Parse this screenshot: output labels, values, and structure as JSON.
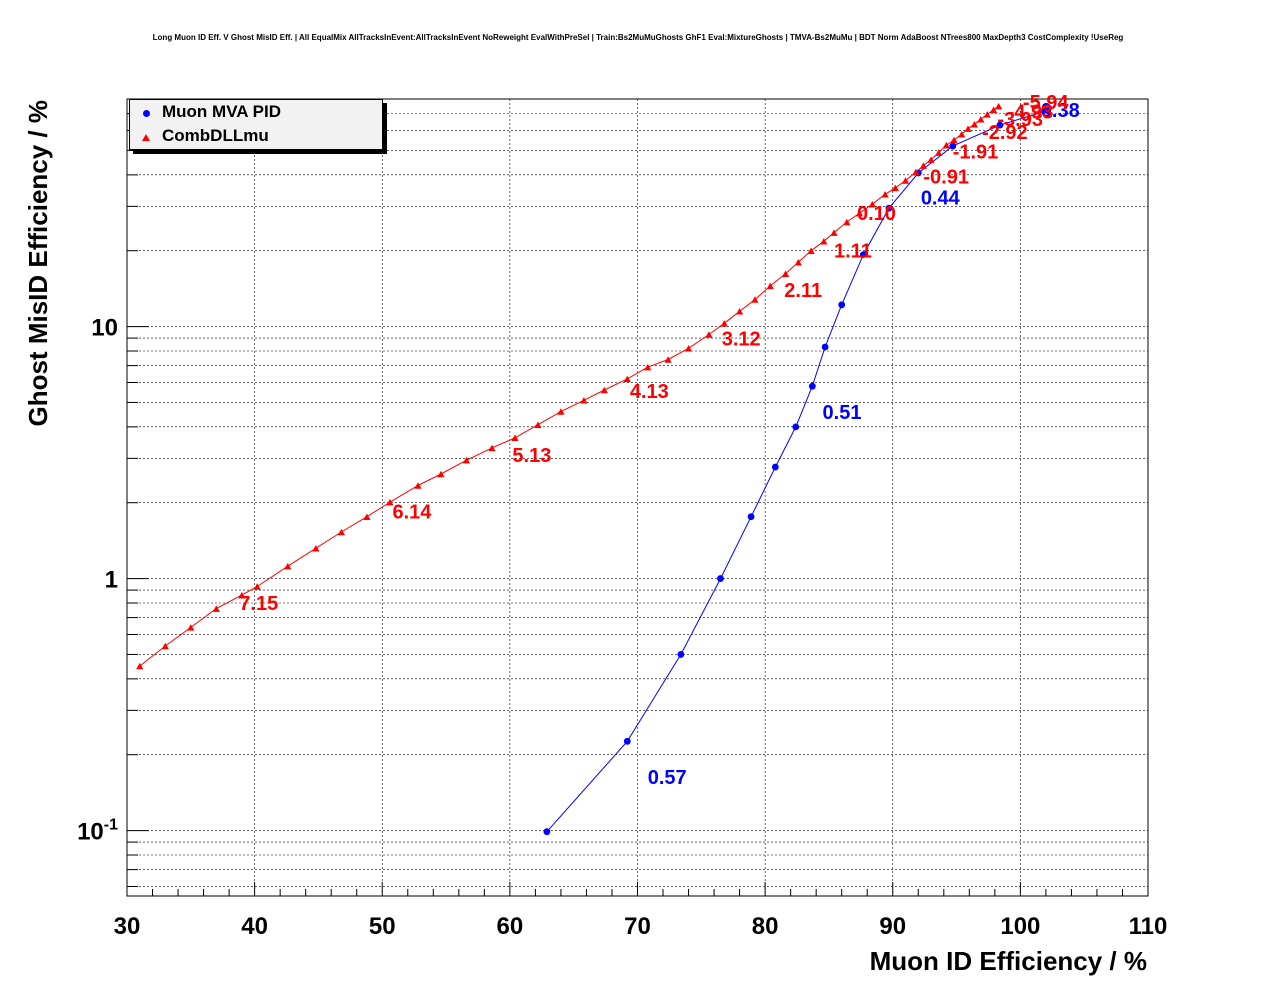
{
  "chart_data": {
    "type": "scatter",
    "title": "Long Muon ID Eff. V Ghost MisID Eff. | All EqualMix AllTracksInEvent:AllTracksInEvent NoReweight EvalWithPreSel | Train:Bs2MuMuGhosts GhF1 Eval:MixtureGhosts | TMVA-Bs2MuMu | BDT Norm AdaBoost NTrees800 MaxDepth3 CostComplexity !UseReg",
    "xlabel": "Muon ID Efficiency / %",
    "ylabel": "Ghost MisID Efficiency / %",
    "xlim": [
      30,
      110
    ],
    "ylim": [
      0.055,
      80
    ],
    "y_scale": "log",
    "grid": true,
    "legend_position": "top-left",
    "x_ticks": [
      "30",
      "40",
      "50",
      "60",
      "70",
      "80",
      "90",
      "100",
      "110"
    ],
    "y_ticks": [
      {
        "value": 0.1,
        "base": "10",
        "exp": "-1"
      },
      {
        "value": 1,
        "base": "1",
        "exp": ""
      },
      {
        "value": 10,
        "base": "10",
        "exp": ""
      }
    ],
    "series": [
      {
        "name": "Muon MVA PID",
        "color": "#0000ff",
        "marker": "circle",
        "x": [
          62.9,
          69.2,
          73.4,
          76.5,
          78.9,
          80.8,
          82.4,
          83.7,
          84.7,
          86.0,
          87.7,
          89.7,
          92.0,
          94.7,
          98.4,
          102.1
        ],
        "y": [
          0.099,
          0.226,
          0.5,
          1.0,
          1.76,
          2.77,
          4.0,
          5.8,
          8.3,
          12.2,
          19.3,
          29.5,
          40.7,
          52.0,
          63.0,
          72.0
        ],
        "labels": [
          {
            "text": "0.57",
            "x": 70.8,
            "y": 0.153
          },
          {
            "text": "0.51",
            "x": 84.5,
            "y": 4.3
          },
          {
            "text": "0.44",
            "x": 92.2,
            "y": 30.5
          },
          {
            "text": "0.38",
            "x": 101.6,
            "y": 68.0
          }
        ]
      },
      {
        "name": "CombDLLmu",
        "color": "#ff0000",
        "marker": "triangle",
        "x": [
          31.0,
          33.0,
          35.0,
          37.0,
          39.0,
          40.2,
          42.6,
          44.8,
          46.8,
          48.8,
          50.6,
          52.8,
          54.6,
          56.6,
          58.6,
          60.4,
          62.2,
          64.0,
          65.8,
          67.4,
          69.2,
          70.8,
          72.4,
          74.0,
          75.6,
          76.8,
          78.0,
          79.2,
          80.4,
          81.6,
          82.6,
          83.6,
          84.6,
          85.4,
          86.4,
          87.4,
          88.4,
          89.4,
          90.2,
          91.0,
          91.8,
          92.4,
          93.0,
          93.6,
          94.2,
          94.8,
          95.4,
          95.9,
          96.4,
          96.9,
          97.4,
          97.9,
          98.3
        ],
        "y": [
          0.45,
          0.54,
          0.64,
          0.76,
          0.86,
          0.93,
          1.12,
          1.32,
          1.53,
          1.76,
          2.01,
          2.34,
          2.6,
          2.95,
          3.3,
          3.62,
          4.08,
          4.6,
          5.1,
          5.6,
          6.2,
          6.9,
          7.4,
          8.2,
          9.3,
          10.3,
          11.5,
          12.8,
          14.5,
          16.2,
          18.0,
          20.0,
          21.8,
          23.6,
          26.0,
          28.2,
          30.6,
          33.5,
          35.5,
          38.0,
          41.0,
          43.5,
          46.0,
          49.0,
          52.5,
          55.0,
          58.0,
          61.0,
          63.5,
          66.5,
          69.5,
          72.5,
          75.0
        ],
        "labels": [
          {
            "text": "7.15",
            "x": 38.8,
            "y": 0.75
          },
          {
            "text": "6.14",
            "x": 50.8,
            "y": 1.73
          },
          {
            "text": "5.13",
            "x": 60.2,
            "y": 2.9
          },
          {
            "text": "4.13",
            "x": 69.4,
            "y": 5.2
          },
          {
            "text": "3.12",
            "x": 76.6,
            "y": 8.4
          },
          {
            "text": "2.11",
            "x": 81.5,
            "y": 13.1
          },
          {
            "text": "1.11",
            "x": 85.4,
            "y": 18.8
          },
          {
            "text": "0.10",
            "x": 87.2,
            "y": 26.5
          },
          {
            "text": "-0.91",
            "x": 92.4,
            "y": 37.0
          },
          {
            "text": "-1.91",
            "x": 94.7,
            "y": 46.5
          },
          {
            "text": "-2.92",
            "x": 97.0,
            "y": 55.5
          },
          {
            "text": "-3.93",
            "x": 98.2,
            "y": 62.5
          },
          {
            "text": "-4.93",
            "x": 99.0,
            "y": 67.0
          },
          {
            "text": "-5.94",
            "x": 100.2,
            "y": 73.0
          }
        ]
      }
    ]
  }
}
